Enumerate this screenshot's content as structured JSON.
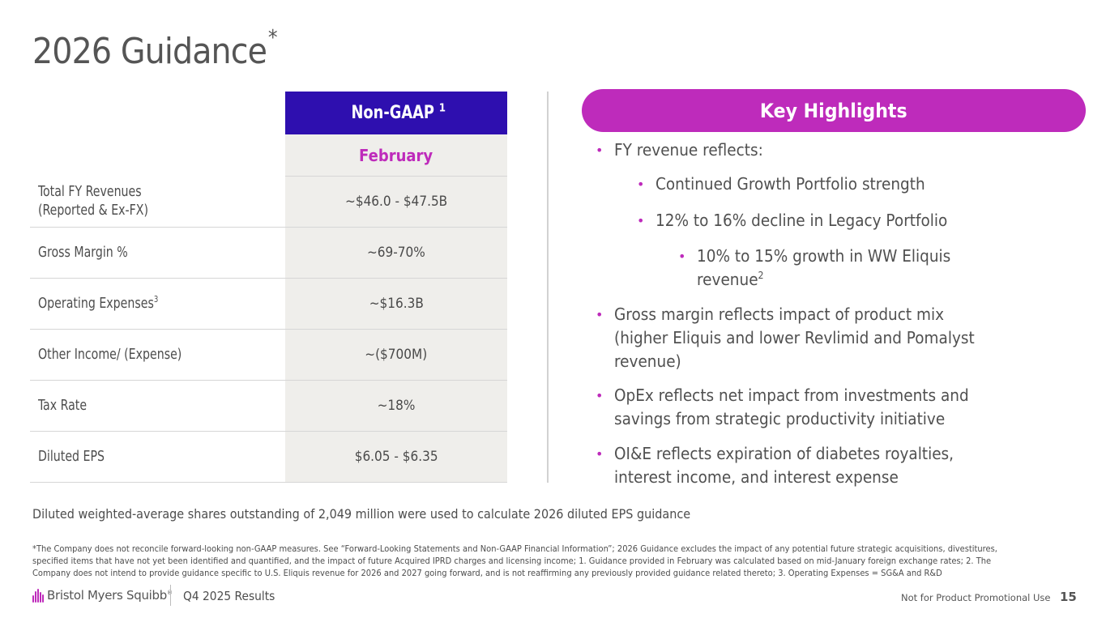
{
  "slide": {
    "title": "2026 Guidance",
    "title_marker": "*"
  },
  "table": {
    "header": {
      "label": "Non-GAAP",
      "footnote": "1"
    },
    "subheader": "February",
    "rows": [
      {
        "label_line1": "Total FY Revenues",
        "label_line2": "(Reported & Ex-FX)",
        "footnote": "",
        "value": "~$46.0 - $47.5B"
      },
      {
        "label_line1": "Gross Margin %",
        "label_line2": "",
        "footnote": "",
        "value": "~69-70%"
      },
      {
        "label_line1": "Operating Expenses",
        "label_line2": "",
        "footnote": "3",
        "value": "~$16.3B"
      },
      {
        "label_line1": "Other Income/ (Expense)",
        "label_line2": "",
        "footnote": "",
        "value": "~($700M)"
      },
      {
        "label_line1": "Tax Rate",
        "label_line2": "",
        "footnote": "",
        "value": "~18%"
      },
      {
        "label_line1": "Diluted EPS",
        "label_line2": "",
        "footnote": "",
        "value": "$6.05 - $6.35"
      }
    ]
  },
  "highlights": {
    "title": "Key Highlights",
    "bullets": [
      {
        "level": 1,
        "lines": [
          "FY revenue reflects:"
        ]
      },
      {
        "level": 2,
        "lines": [
          "Continued Growth Portfolio strength"
        ]
      },
      {
        "level": 2,
        "lines": [
          "12% to 16% decline in Legacy Portfolio"
        ]
      },
      {
        "level": 3,
        "lines": [
          "10% to 15% growth in WW Eliquis",
          "revenue"
        ],
        "footnote": "2"
      },
      {
        "level": 1,
        "lines": [
          "Gross margin reflects impact of product mix",
          "(higher Eliquis and lower Revlimid and Pomalyst",
          "revenue)"
        ]
      },
      {
        "level": 1,
        "lines": [
          "OpEx reflects net impact from investments and",
          "savings from strategic productivity initiative"
        ]
      },
      {
        "level": 1,
        "lines": [
          "OI&E reflects expiration of diabetes royalties,",
          "interest income, and interest expense"
        ]
      }
    ]
  },
  "eps_note": "Diluted weighted-average shares outstanding of 2,049 million were used to calculate 2026 diluted EPS guidance",
  "footnote_lines": [
    "*The Company does not reconcile forward-looking non-GAAP measures. See “Forward-Looking Statements and Non-GAAP Financial Information”; 2026 Guidance excludes the impact of any potential future strategic acquisitions, divestitures,",
    "specified items that have not yet been identified and quantified, and the impact of future Acquired IPRD charges and licensing income; 1. Guidance provided in February was calculated based on mid-January foreign exchange rates; 2. The",
    "Company does not intend to provide guidance specific to U.S. Eliquis revenue for 2026 and 2027 going forward, and is not reaffirming any previously provided guidance related thereto; 3. Operating Expenses = SG&A and R&D"
  ],
  "footer": {
    "brand": "Bristol Myers Squibb",
    "brand_mark": "®",
    "deck": "Q4 2025 Results",
    "promo_note": "Not for Product Promotional Use",
    "page_number": "15"
  },
  "colors": {
    "header_blue": "#2e0faf",
    "accent_magenta": "#be2bbb",
    "value_bg": "#efeeeb",
    "text_gray": "#4d4d4d"
  }
}
